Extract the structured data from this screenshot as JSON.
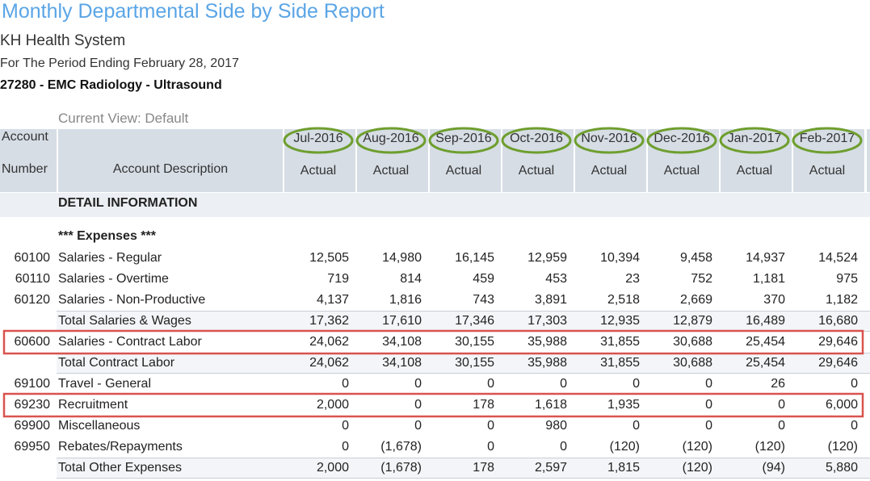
{
  "header": {
    "title": "Monthly Departmental Side by Side Report",
    "organization": "KH Health System",
    "period": "For The Period Ending February 28, 2017",
    "department": "27280 - EMC Radiology - Ultrasound"
  },
  "view": "Current View: Default",
  "table": {
    "account_header": [
      "Account",
      "Number"
    ],
    "description_header": "Account Description",
    "periods": [
      "Jul-2016",
      "Aug-2016",
      "Sep-2016",
      "Oct-2016",
      "Nov-2016",
      "Dec-2016",
      "Jan-2017",
      "Feb-2017"
    ],
    "measures": [
      "Actual",
      "Actual",
      "Actual",
      "Actual",
      "Actual",
      "Actual",
      "Actual",
      "Actual"
    ],
    "section_title": "DETAIL INFORMATION",
    "group_title": "*** Expenses ***",
    "rows": [
      {
        "account": "60100",
        "description": "Salaries - Regular",
        "values": [
          "12,505",
          "14,980",
          "16,145",
          "12,959",
          "10,394",
          "9,458",
          "14,937",
          "14,524"
        ]
      },
      {
        "account": "60110",
        "description": "Salaries - Overtime",
        "values": [
          "719",
          "814",
          "459",
          "453",
          "23",
          "752",
          "1,181",
          "975"
        ]
      },
      {
        "account": "60120",
        "description": "Salaries - Non-Productive",
        "values": [
          "4,137",
          "1,816",
          "743",
          "3,891",
          "2,518",
          "2,669",
          "370",
          "1,182"
        ]
      },
      {
        "description": "Total Salaries & Wages",
        "total": true,
        "values": [
          "17,362",
          "17,610",
          "17,346",
          "17,303",
          "12,935",
          "12,879",
          "16,489",
          "16,680"
        ]
      },
      {
        "account": "60600",
        "description": "Salaries - Contract Labor",
        "highlighted": true,
        "values": [
          "24,062",
          "34,108",
          "30,155",
          "35,988",
          "31,855",
          "30,688",
          "25,454",
          "29,646"
        ]
      },
      {
        "description": "Total Contract Labor",
        "total": true,
        "values": [
          "24,062",
          "34,108",
          "30,155",
          "35,988",
          "31,855",
          "30,688",
          "25,454",
          "29,646"
        ]
      },
      {
        "account": "69100",
        "description": "Travel - General",
        "values": [
          "0",
          "0",
          "0",
          "0",
          "0",
          "0",
          "26",
          "0"
        ]
      },
      {
        "account": "69230",
        "description": "Recruitment",
        "highlighted": true,
        "values": [
          "2,000",
          "0",
          "178",
          "1,618",
          "1,935",
          "0",
          "0",
          "6,000"
        ]
      },
      {
        "account": "69900",
        "description": "Miscellaneous",
        "values": [
          "0",
          "0",
          "0",
          "980",
          "0",
          "0",
          "0",
          "0"
        ]
      },
      {
        "account": "69950",
        "description": "Rebates/Repayments",
        "values": [
          "0",
          "(1,678)",
          "0",
          "0",
          "(120)",
          "(120)",
          "(120)",
          "(120)"
        ]
      },
      {
        "description": "Total Other Expenses",
        "total": true,
        "values": [
          "2,000",
          "(1,678)",
          "178",
          "2,597",
          "1,815",
          "(120)",
          "(94)",
          "5,880"
        ]
      }
    ]
  }
}
